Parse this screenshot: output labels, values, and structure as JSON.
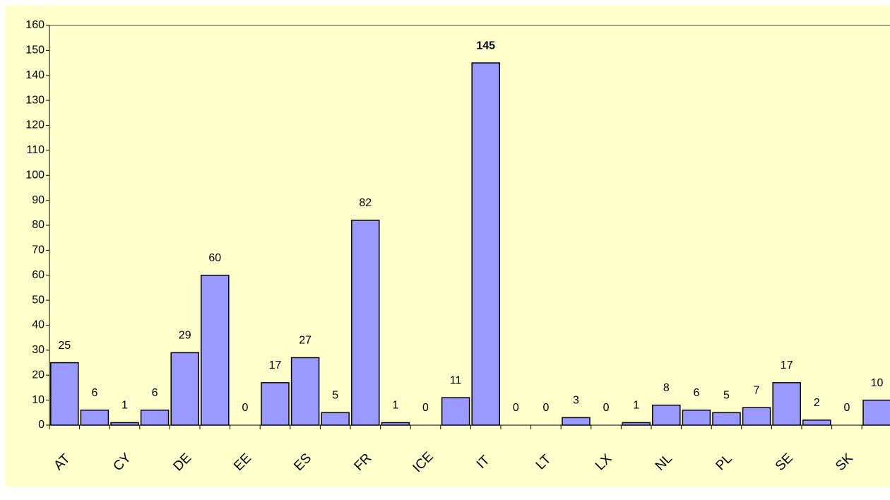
{
  "chart_data": {
    "type": "bar",
    "categories": [
      "AT",
      null,
      "CY",
      null,
      "DE",
      null,
      "EE",
      null,
      "ES",
      null,
      "FR",
      null,
      "ICE",
      null,
      "IT",
      null,
      "LT",
      null,
      "LX",
      null,
      "NL",
      null,
      "PL",
      null,
      "SE",
      null,
      "SK",
      null
    ],
    "values": [
      25,
      6,
      1,
      6,
      29,
      60,
      0,
      17,
      27,
      5,
      82,
      1,
      0,
      11,
      145,
      0,
      0,
      3,
      0,
      1,
      8,
      6,
      5,
      7,
      17,
      2,
      0,
      10
    ],
    "color": "#9999ff",
    "bold_value_label_index": 14,
    "ylim": [
      0,
      160
    ],
    "yticks": [
      0,
      10,
      20,
      30,
      40,
      50,
      60,
      70,
      80,
      90,
      100,
      110,
      120,
      130,
      140,
      150,
      160
    ]
  }
}
